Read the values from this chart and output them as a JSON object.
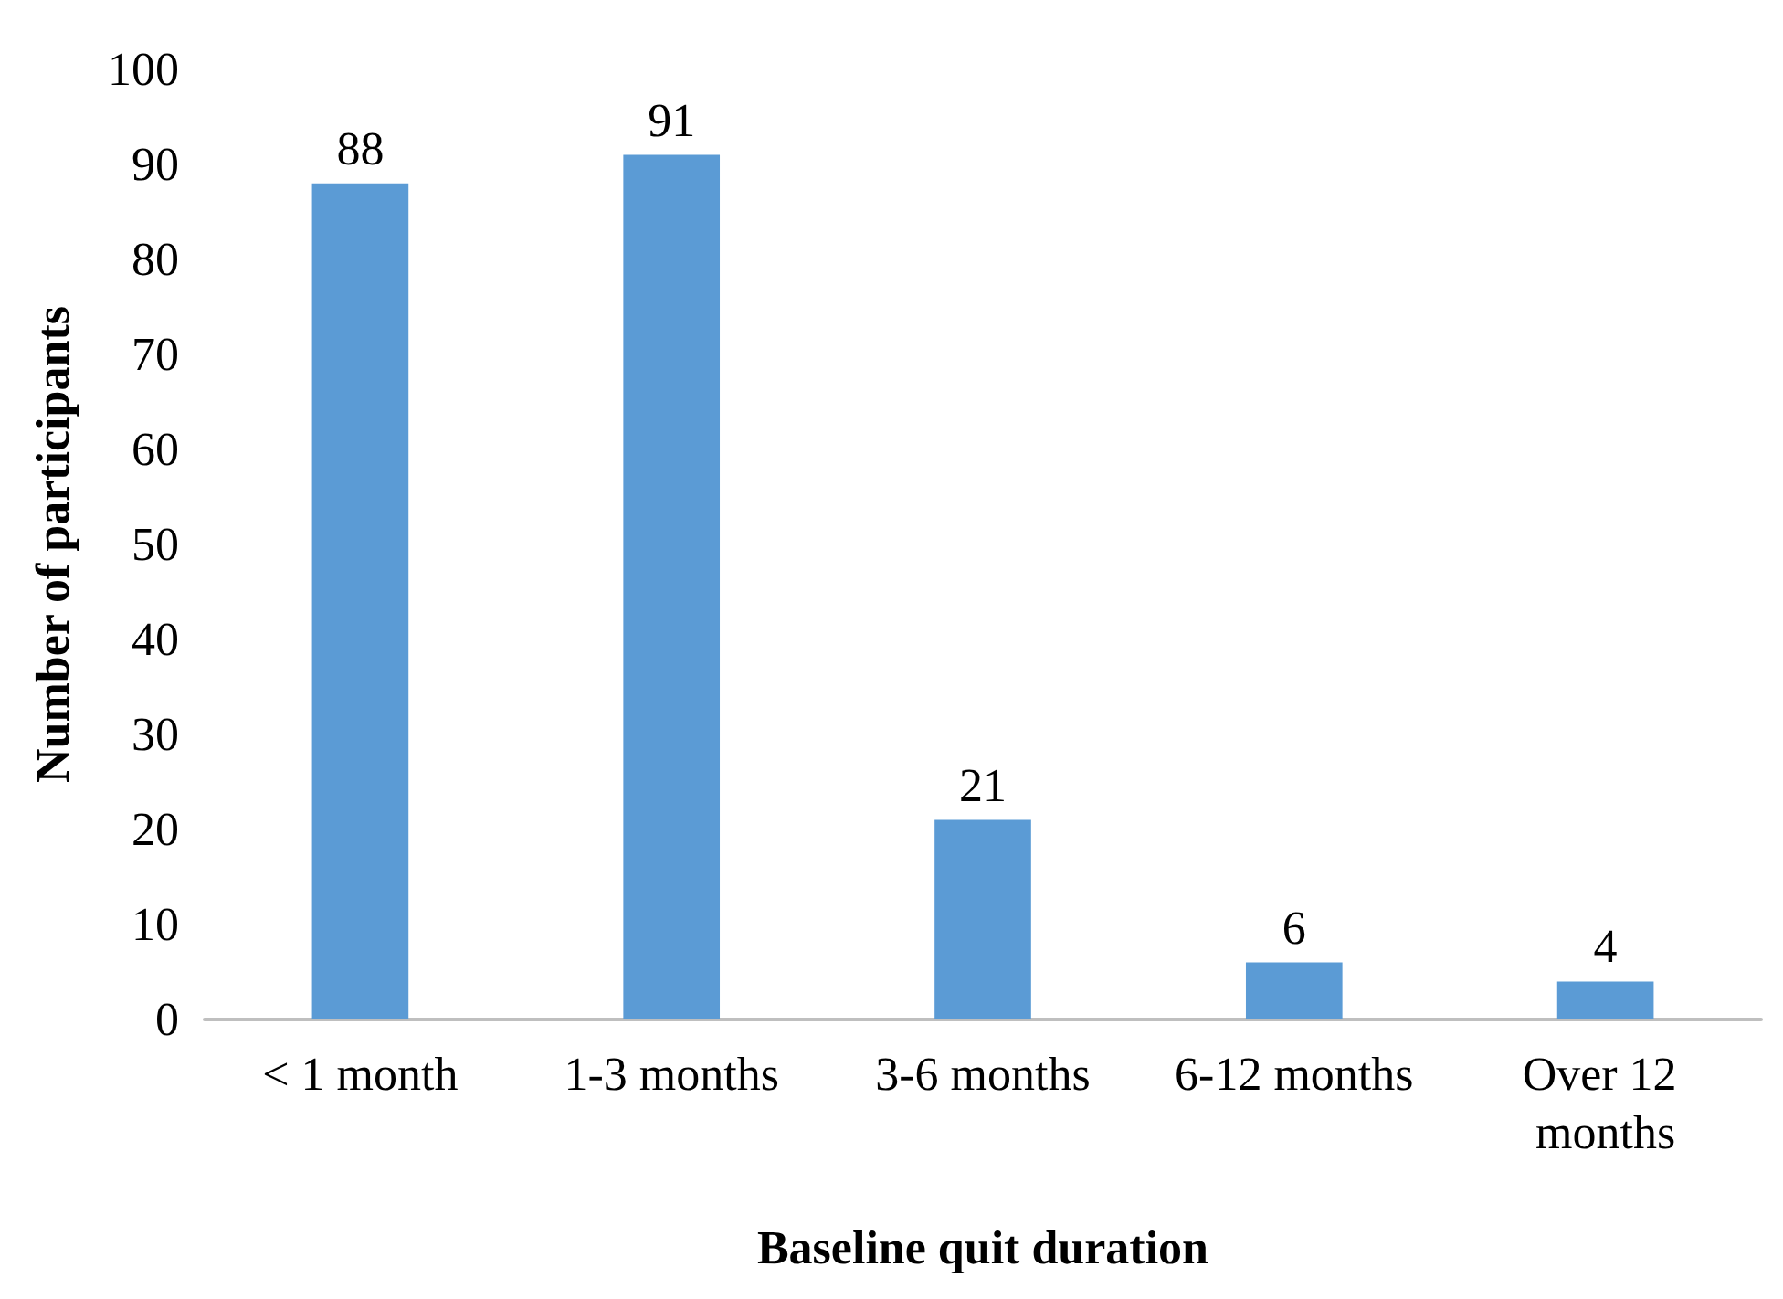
{
  "chart_data": {
    "type": "bar",
    "xlabel": "Baseline quit duration",
    "ylabel": "Number of participants",
    "categories": [
      "< 1 month",
      "1-3 months",
      "3-6 months",
      "6-12 months",
      "Over 12 months"
    ],
    "values": [
      88,
      91,
      21,
      6,
      4
    ],
    "color": "#5b9bd5",
    "ylim": [
      0,
      100
    ],
    "yticks": [
      0,
      10,
      20,
      30,
      40,
      50,
      60,
      70,
      80,
      90,
      100
    ],
    "grid": false,
    "data_labels": true
  }
}
